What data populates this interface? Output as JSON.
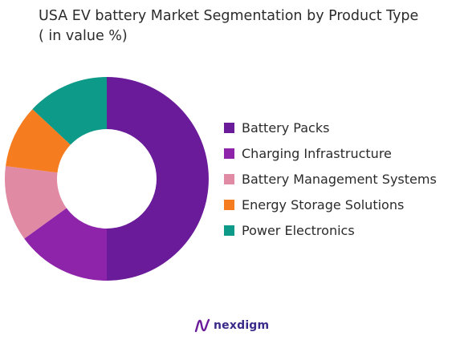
{
  "chart_data": {
    "type": "pie",
    "title": "USA EV battery Market Segmentation by Product Type ( in value %)",
    "categories": [
      "Battery Packs",
      "Charging Infrastructure",
      "Battery Management Systems",
      "Energy Storage Solutions",
      "Power Electronics"
    ],
    "values": [
      50,
      15,
      12,
      10,
      13
    ],
    "colors": [
      "#6a1b9a",
      "#8e24aa",
      "#e08aa4",
      "#f57c1f",
      "#0e9a88"
    ],
    "donut": true,
    "legend_position": "right"
  },
  "brand": {
    "name": "nexdigm",
    "logo_icon": "nexdigm-logo-icon",
    "color": "#3a2a8a"
  }
}
